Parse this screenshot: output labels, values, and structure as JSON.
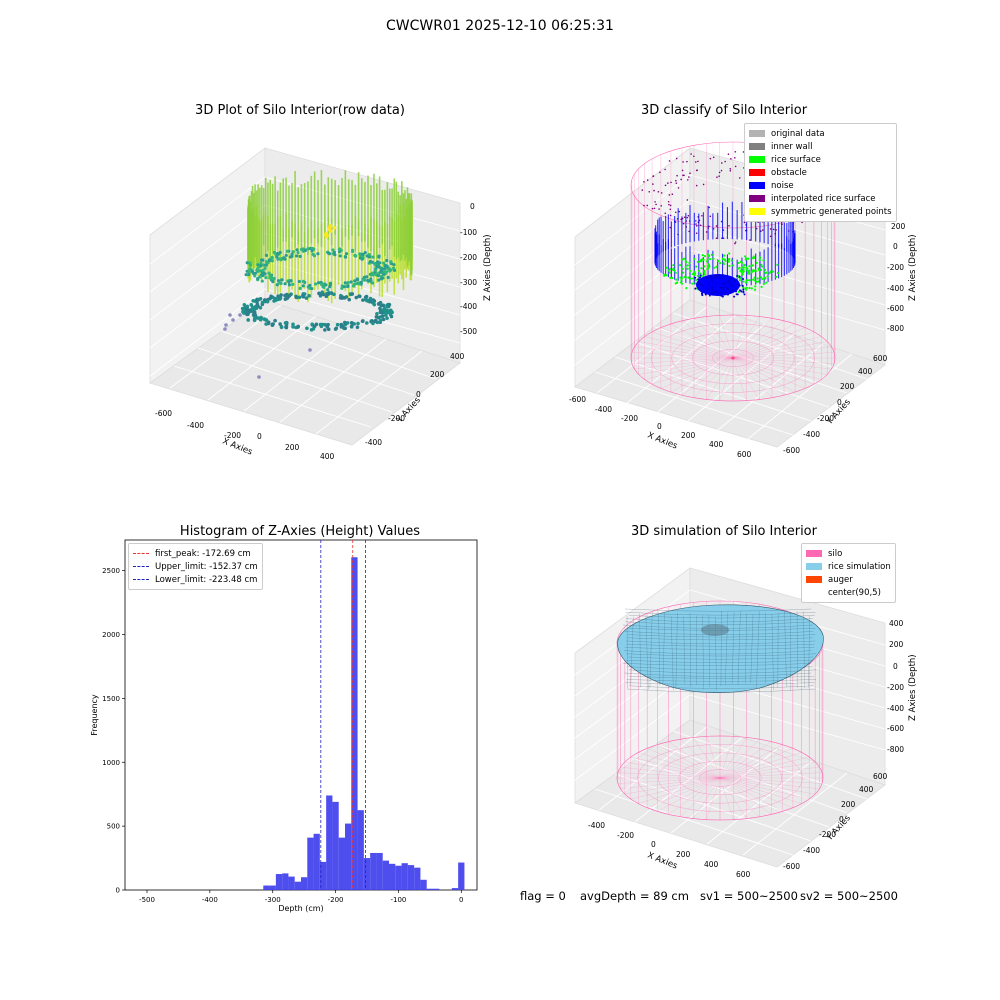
{
  "suptitle": "CWCWR01 2025-12-10 06:25:31",
  "panels": {
    "p1": {
      "title": "3D Plot of Silo Interior(row data)",
      "xlabel": "X Axies",
      "ylabel": "Y Axies",
      "zlabel": "Z Axies (Depth)",
      "xticks": [
        "-600",
        "-400",
        "-200",
        "0",
        "200",
        "400"
      ],
      "yticks": [
        "-400",
        "-200",
        "0",
        "200",
        "400"
      ],
      "zticks": [
        "0",
        "-100",
        "-200",
        "-300",
        "-400",
        "-500"
      ]
    },
    "p2": {
      "title": "3D classify of Silo Interior",
      "xlabel": "X Axies",
      "ylabel": "Y Axies",
      "zlabel": "Z Axies (Depth)",
      "xticks": [
        "-600",
        "-400",
        "-200",
        "0",
        "200",
        "400",
        "600"
      ],
      "yticks": [
        "-600",
        "-400",
        "-200",
        "0",
        "200",
        "400",
        "600"
      ],
      "zticks": [
        "200",
        "0",
        "-200",
        "-400",
        "-600",
        "-800"
      ],
      "legend": [
        {
          "label": "original data",
          "color": "#b3b3b3"
        },
        {
          "label": "inner wall",
          "color": "#808080"
        },
        {
          "label": "rice surface",
          "color": "#00ff00"
        },
        {
          "label": "obstacle",
          "color": "#ff0000"
        },
        {
          "label": "noise",
          "color": "#0000ff"
        },
        {
          "label": "interpolated rice surface",
          "color": "#800080"
        },
        {
          "label": "symmetric generated points",
          "color": "#ffff00"
        }
      ]
    },
    "p4": {
      "title": "3D simulation of Silo Interior",
      "xlabel": "X Axies",
      "ylabel": "Y Axies",
      "zlabel": "Z Axies (Depth)",
      "xticks": [
        "-400",
        "-200",
        "0",
        "200",
        "400",
        "600"
      ],
      "yticks": [
        "-600",
        "-400",
        "-200",
        "0",
        "200",
        "400",
        "600"
      ],
      "zticks": [
        "400",
        "200",
        "0",
        "-200",
        "-400",
        "-600",
        "-800"
      ],
      "legend": [
        {
          "label": "silo",
          "color": "#ff69b4"
        },
        {
          "label": "rice simulation",
          "color": "#87ceeb"
        },
        {
          "label": "auger",
          "color": "#ff4500"
        },
        {
          "label": "center(90,5)",
          "color": ""
        }
      ]
    }
  },
  "footer": {
    "flag": "flag = 0",
    "avg": "avgDepth = 89 cm",
    "sv1": "sv1 = 500~2500",
    "sv2": "sv2 = 500~2500"
  },
  "chart_data": [
    {
      "type": "scatter",
      "title": "3D Plot of Silo Interior(row data)",
      "xlabel": "X Axies",
      "ylabel": "Y Axies",
      "zlabel": "Z Axies (Depth)",
      "xlim": [
        -650,
        450
      ],
      "ylim": [
        -450,
        450
      ],
      "zlim": [
        -550,
        20
      ]
    },
    {
      "type": "scatter",
      "title": "3D classify of Silo Interior",
      "xlabel": "X Axies",
      "ylabel": "Y Axies",
      "zlabel": "Z Axies (Depth)",
      "xlim": [
        -650,
        650
      ],
      "ylim": [
        -650,
        650
      ],
      "zlim": [
        -900,
        250
      ],
      "series": [
        {
          "name": "original data"
        },
        {
          "name": "inner wall"
        },
        {
          "name": "rice surface"
        },
        {
          "name": "obstacle"
        },
        {
          "name": "noise"
        },
        {
          "name": "interpolated rice surface"
        },
        {
          "name": "symmetric generated points"
        }
      ]
    },
    {
      "type": "bar",
      "title": "Histogram of Z-Axies (Height) Values",
      "xlabel": "Depth (cm)",
      "ylabel": "Frequency",
      "xlim": [
        -535,
        25
      ],
      "ylim": [
        0,
        2740
      ],
      "xticks": [
        -500,
        -400,
        -300,
        -200,
        -100,
        0
      ],
      "yticks": [
        0,
        500,
        1000,
        1500,
        2000,
        2500
      ],
      "bin_width": 10,
      "bins": [
        {
          "x0": -315,
          "value": 35
        },
        {
          "x0": -305,
          "value": 35
        },
        {
          "x0": -295,
          "value": 125
        },
        {
          "x0": -285,
          "value": 130
        },
        {
          "x0": -275,
          "value": 105
        },
        {
          "x0": -265,
          "value": 65
        },
        {
          "x0": -255,
          "value": 100
        },
        {
          "x0": -245,
          "value": 410
        },
        {
          "x0": -235,
          "value": 440
        },
        {
          "x0": -225,
          "value": 220
        },
        {
          "x0": -215,
          "value": 740
        },
        {
          "x0": -205,
          "value": 690
        },
        {
          "x0": -195,
          "value": 410
        },
        {
          "x0": -185,
          "value": 520
        },
        {
          "x0": -175,
          "value": 2605
        },
        {
          "x0": -165,
          "value": 625
        },
        {
          "x0": -155,
          "value": 250
        },
        {
          "x0": -145,
          "value": 290
        },
        {
          "x0": -135,
          "value": 290
        },
        {
          "x0": -125,
          "value": 230
        },
        {
          "x0": -115,
          "value": 205
        },
        {
          "x0": -105,
          "value": 190
        },
        {
          "x0": -95,
          "value": 210
        },
        {
          "x0": -85,
          "value": 195
        },
        {
          "x0": -75,
          "value": 175
        },
        {
          "x0": -65,
          "value": 80
        },
        {
          "x0": -55,
          "value": 10
        },
        {
          "x0": -45,
          "value": 10
        },
        {
          "x0": -15,
          "value": 15
        },
        {
          "x0": -5,
          "value": 215
        }
      ],
      "bar_color": "#4444ee",
      "vlines": [
        {
          "label": "first_peak: -172.69 cm",
          "x": -172.69,
          "color": "#ee3333"
        },
        {
          "label": "Upper_limit: -152.37 cm",
          "x": -152.37,
          "color": "#2222bb"
        },
        {
          "label": "Lower_limit: -223.48 cm",
          "x": -223.48,
          "color": "#2222bb"
        }
      ]
    },
    {
      "type": "area",
      "title": "3D simulation of Silo Interior",
      "xlabel": "X Axies",
      "ylabel": "Y Axies",
      "zlabel": "Z Axies (Depth)",
      "xlim": [
        -500,
        700
      ],
      "ylim": [
        -650,
        650
      ],
      "zlim": [
        -900,
        450
      ],
      "series": [
        {
          "name": "silo"
        },
        {
          "name": "rice simulation"
        },
        {
          "name": "auger"
        },
        {
          "name": "center(90,5)"
        }
      ]
    }
  ]
}
